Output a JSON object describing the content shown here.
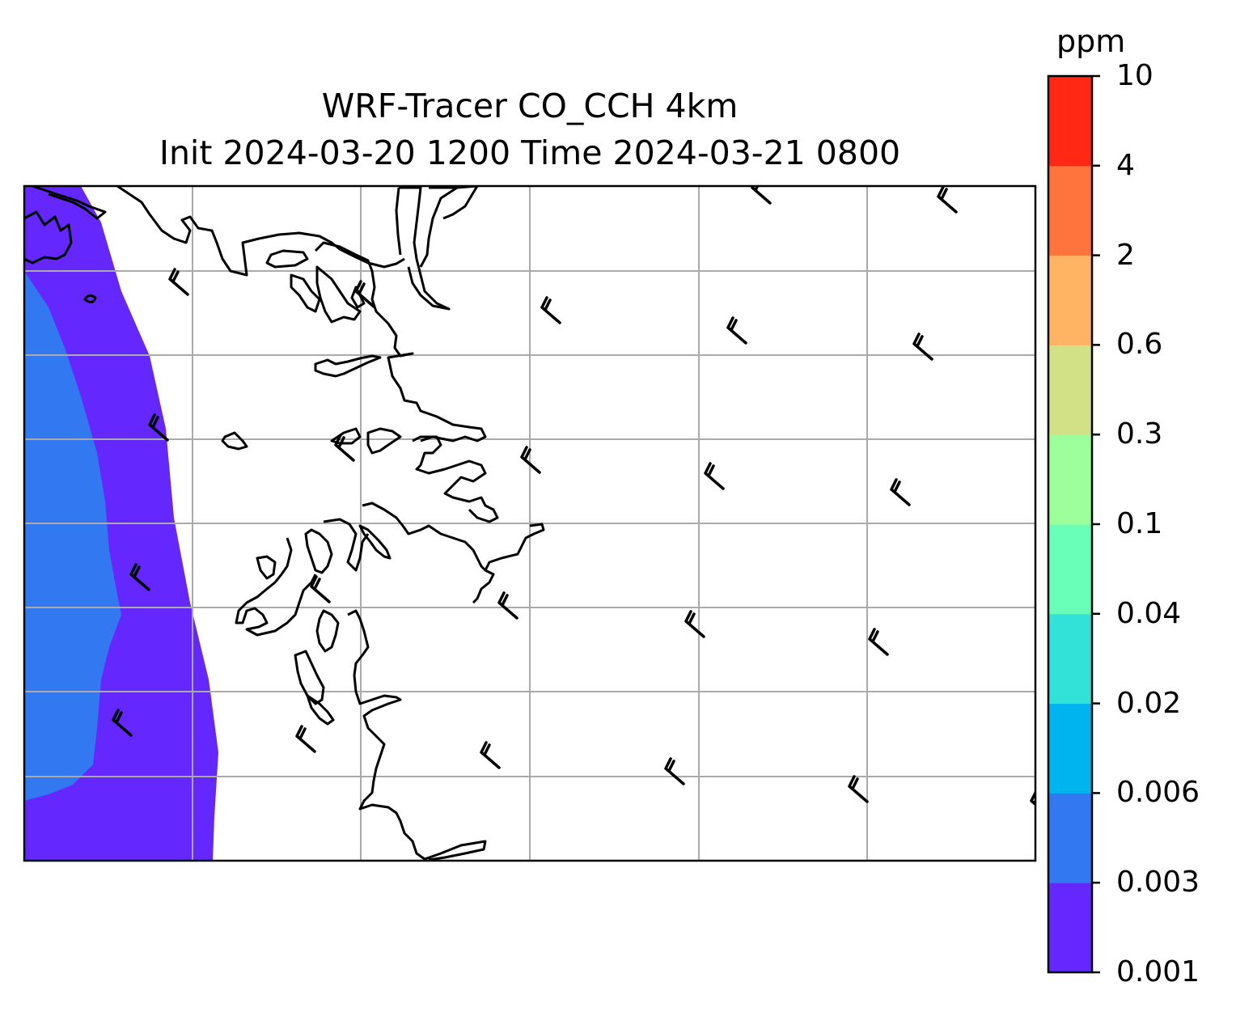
{
  "title": {
    "line1": "WRF-Tracer CO_CCH 4km",
    "line2": "Init 2024-03-20 1200 Time 2024-03-21 0800"
  },
  "colorbar": {
    "unit": "ppm",
    "levels": [
      "0.001",
      "0.003",
      "0.006",
      "0.02",
      "0.04",
      "0.1",
      "0.3",
      "0.6",
      "2",
      "4",
      "10"
    ],
    "colors": [
      "#6428ff",
      "#3278f0",
      "#00b4f0",
      "#32e1d7",
      "#6affb9",
      "#9cff9c",
      "#d2e185",
      "#ffb464",
      "#ff733c",
      "#ff2814"
    ]
  },
  "map": {
    "gridlines": true,
    "gridline_color": "#aaaaaa",
    "coastline_color": "#000000",
    "fill_field": "CO tracer concentration (filled contours, offshore plume along west edge)",
    "wind_barbs": "northwesterly barbs on a regular grid"
  }
}
